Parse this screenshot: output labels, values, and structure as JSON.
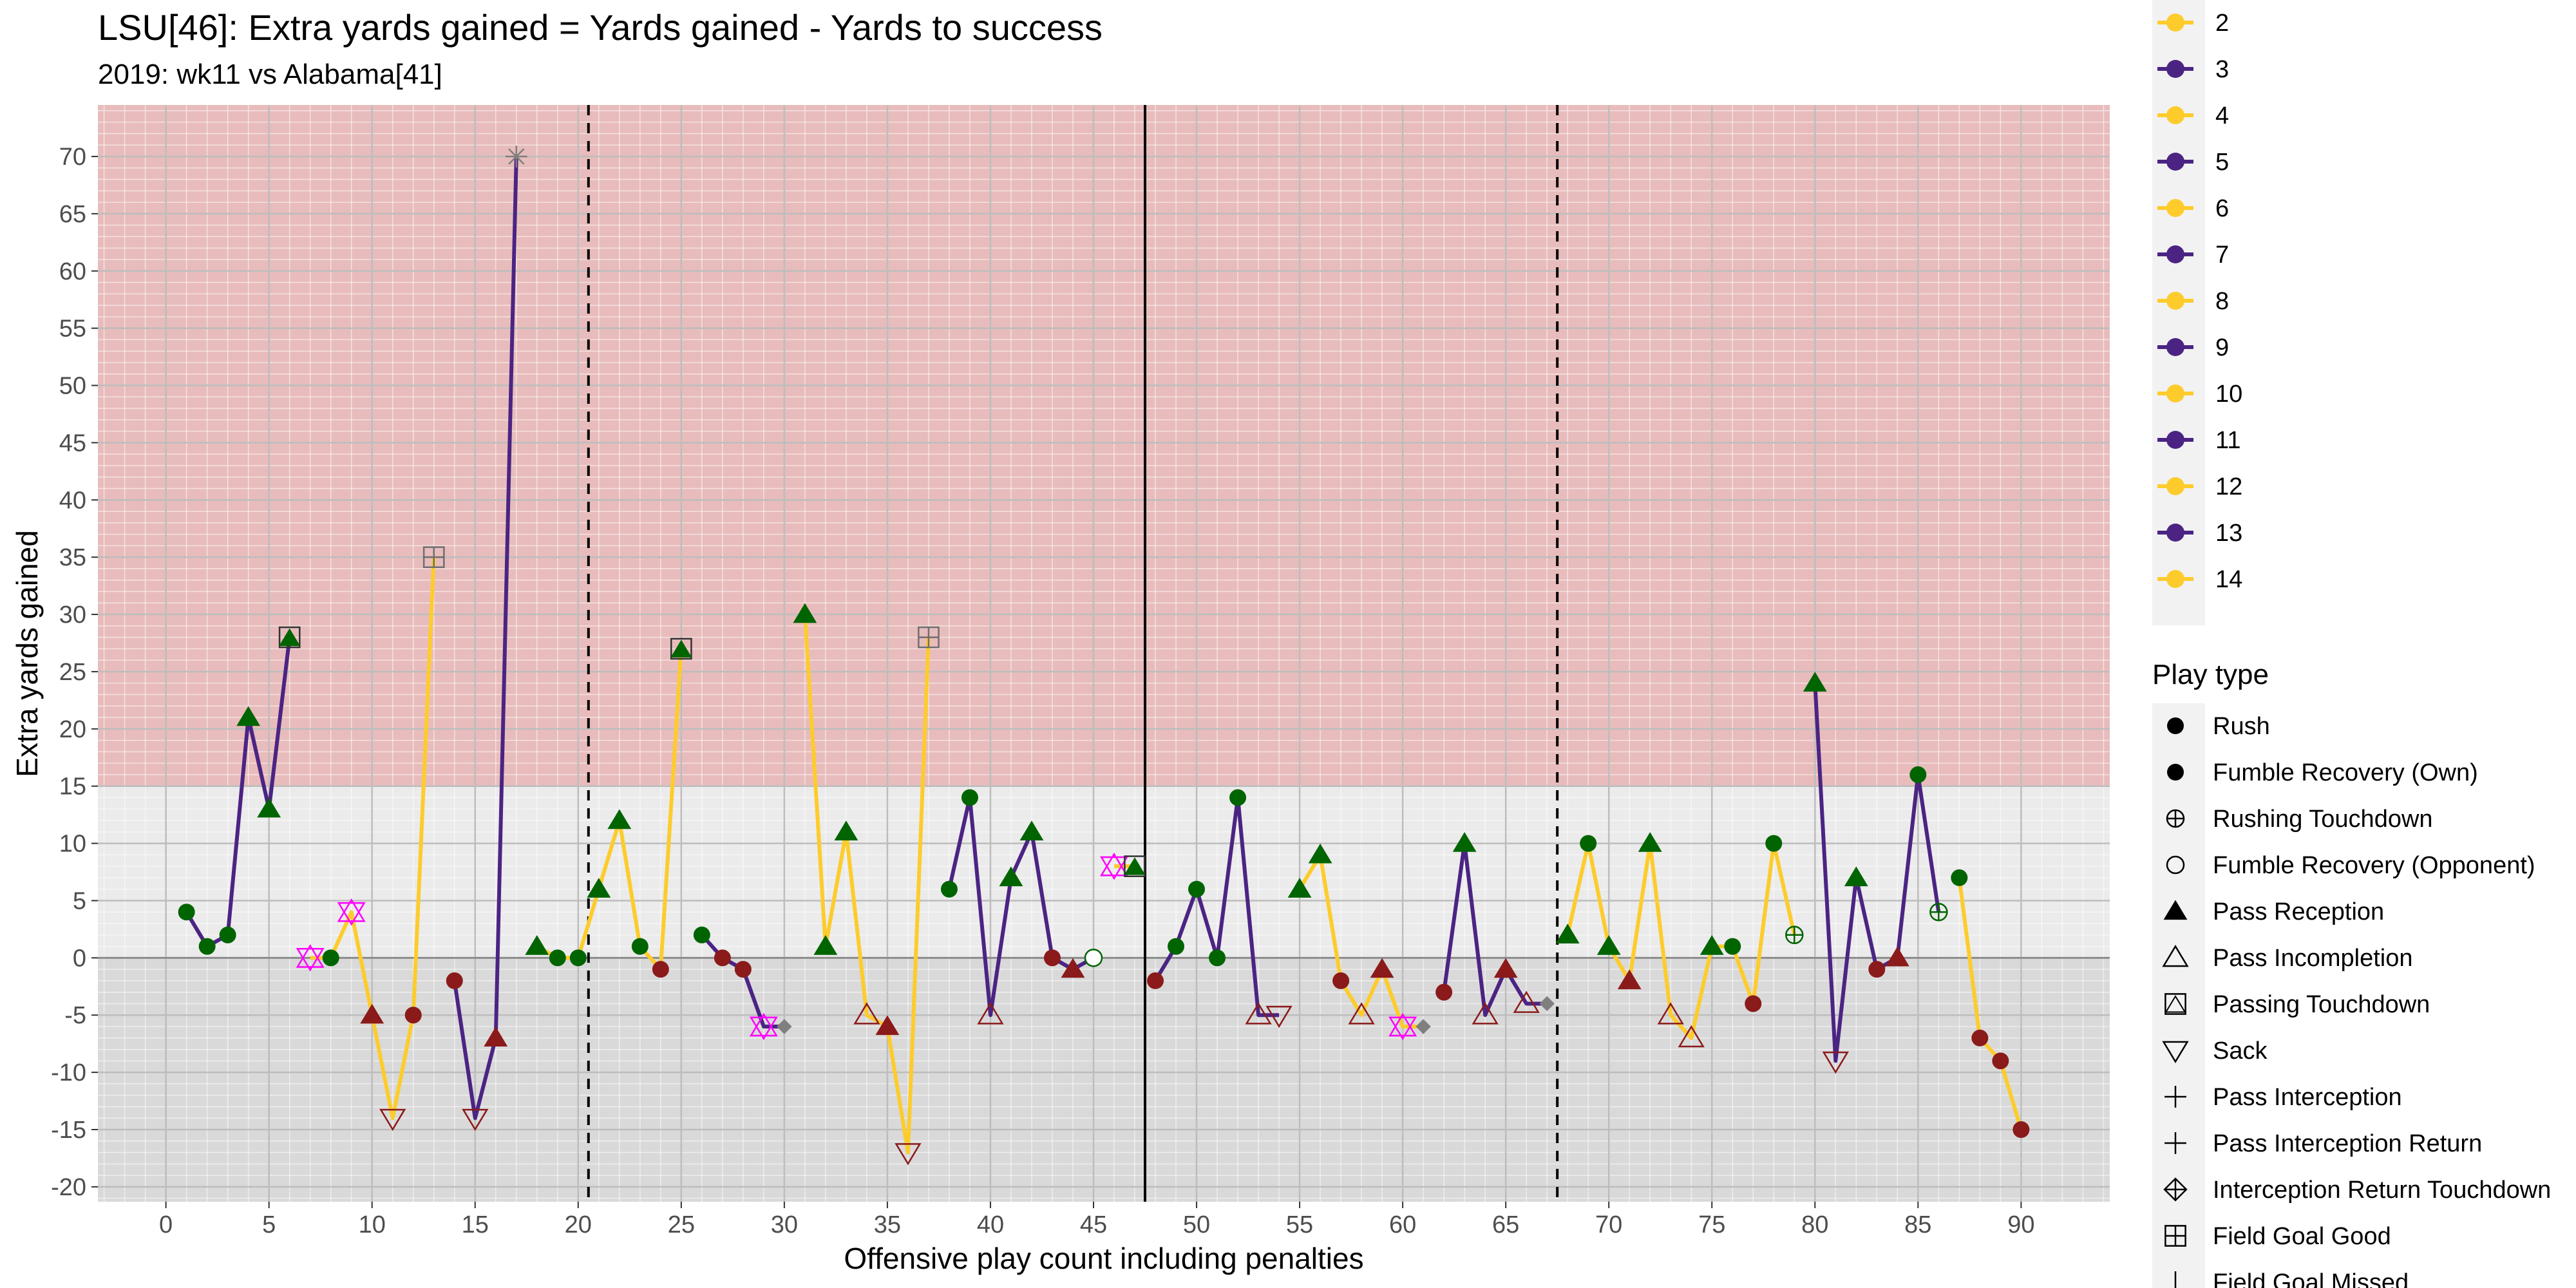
{
  "chart_data": {
    "type": "line",
    "title": "LSU[46]: Extra yards gained = Yards gained - Yards to success",
    "subtitle": "2019: wk11 vs Alabama[41]",
    "xlabel": "Offensive play count including penalties",
    "ylabel": "Extra yards gained",
    "xlim": [
      -3.3,
      94.3
    ],
    "ylim": [
      -21.3,
      74.5
    ],
    "x_ticks": [
      0,
      5,
      10,
      15,
      20,
      25,
      30,
      35,
      40,
      45,
      50,
      55,
      60,
      65,
      70,
      75,
      80,
      85,
      90
    ],
    "y_ticks": [
      -20,
      -15,
      -10,
      -5,
      0,
      5,
      10,
      15,
      20,
      25,
      30,
      35,
      40,
      45,
      50,
      55,
      60,
      65,
      70
    ],
    "success_threshold": 15,
    "zero_line": 0,
    "quarter_lines": [
      {
        "x": 20.5,
        "style": "dashed"
      },
      {
        "x": 47.5,
        "style": "solid"
      },
      {
        "x": 67.5,
        "style": "dashed"
      }
    ],
    "colors": {
      "success_zone": "#e8bcbc",
      "upper_panel": "#ebebeb",
      "lower_panel": "#d9d9d9",
      "drive_odd": "#4b2483",
      "drive_even": "#fdcc2c",
      "good_play": "#006400",
      "bad_play": "#8b1a1a",
      "penalty": "#ff00ff",
      "neutral": "#7f7f7f"
    },
    "drives": [
      {
        "drive": 1,
        "color": "drive_odd",
        "plays": [
          [
            1,
            4,
            "rush",
            "good"
          ],
          [
            2,
            1,
            "rush",
            "good"
          ],
          [
            3,
            2,
            "rush",
            "good"
          ],
          [
            4,
            21,
            "pass_reception",
            "good"
          ],
          [
            5,
            13,
            "pass_reception",
            "good"
          ],
          [
            6,
            28,
            "passing_touchdown",
            "good"
          ]
        ]
      },
      {
        "drive": 2,
        "color": "drive_even",
        "plays": [
          [
            7,
            0,
            "penalty",
            "penalty"
          ],
          [
            8,
            0,
            "rush",
            "good"
          ],
          [
            9,
            4,
            "penalty",
            "penalty"
          ],
          [
            10,
            -5,
            "pass_reception",
            "bad"
          ],
          [
            11,
            -14,
            "sack",
            "bad"
          ],
          [
            12,
            -5,
            "rush",
            "bad"
          ],
          [
            13,
            35,
            "field_goal_good",
            "neutral"
          ]
        ]
      },
      {
        "drive": 3,
        "color": "drive_odd",
        "plays": [
          [
            14,
            -2,
            "rush",
            "bad"
          ],
          [
            15,
            -14,
            "sack",
            "bad"
          ],
          [
            16,
            -7,
            "pass_reception",
            "bad"
          ],
          [
            17,
            70,
            "punt",
            "neutral"
          ]
        ]
      },
      {
        "drive": 4,
        "color": "drive_even",
        "plays": [
          [
            18,
            1,
            "pass_reception",
            "good"
          ],
          [
            19,
            0,
            "rush",
            "good"
          ],
          [
            20,
            0,
            "rush",
            "good"
          ],
          [
            21,
            6,
            "pass_reception",
            "good"
          ],
          [
            22,
            12,
            "pass_reception",
            "good"
          ],
          [
            23,
            1,
            "rush",
            "good"
          ],
          [
            24,
            -1,
            "rush",
            "bad"
          ],
          [
            25,
            27,
            "passing_touchdown",
            "good"
          ]
        ]
      },
      {
        "drive": 5,
        "color": "drive_odd",
        "plays": [
          [
            26,
            2,
            "rush",
            "good"
          ],
          [
            27,
            0,
            "rush",
            "bad"
          ],
          [
            28,
            -1,
            "rush",
            "bad"
          ],
          [
            29,
            -6,
            "penalty",
            "penalty"
          ],
          [
            30,
            -6,
            "kneel",
            "neutral"
          ]
        ]
      },
      {
        "drive": 6,
        "color": "drive_even",
        "plays": [
          [
            31,
            30,
            "pass_reception",
            "good"
          ],
          [
            32,
            1,
            "pass_reception",
            "good"
          ],
          [
            33,
            11,
            "pass_reception",
            "good"
          ],
          [
            34,
            -5,
            "pass_incompletion",
            "bad"
          ],
          [
            35,
            -6,
            "pass_reception",
            "bad"
          ],
          [
            36,
            -17,
            "sack",
            "bad"
          ],
          [
            37,
            28,
            "field_goal_good",
            "neutral"
          ]
        ]
      },
      {
        "drive": 7,
        "color": "drive_odd",
        "plays": [
          [
            38,
            6,
            "rush",
            "good"
          ],
          [
            39,
            14,
            "rush",
            "good"
          ],
          [
            40,
            -5,
            "pass_incompletion",
            "bad"
          ],
          [
            41,
            7,
            "pass_reception",
            "good"
          ],
          [
            42,
            11,
            "pass_reception",
            "good"
          ],
          [
            43,
            0,
            "rush",
            "bad"
          ],
          [
            44,
            -1,
            "pass_reception",
            "bad"
          ],
          [
            45,
            0,
            "fumble_recovery_opponent",
            "good"
          ]
        ]
      },
      {
        "drive": 8,
        "color": "drive_even",
        "plays": [
          [
            46,
            8,
            "penalty",
            "penalty"
          ],
          [
            47,
            8,
            "passing_touchdown",
            "good"
          ]
        ]
      },
      {
        "drive": 9,
        "color": "drive_odd",
        "plays": [
          [
            48,
            -2,
            "rush",
            "bad"
          ],
          [
            49,
            1,
            "rush",
            "good"
          ],
          [
            50,
            6,
            "rush",
            "good"
          ],
          [
            51,
            0,
            "rush",
            "good"
          ],
          [
            52,
            14,
            "rush",
            "good"
          ],
          [
            53,
            -5,
            "pass_incompletion",
            "bad"
          ],
          [
            54,
            -5,
            "sack",
            "bad"
          ]
        ]
      },
      {
        "drive": 10,
        "color": "drive_even",
        "plays": [
          [
            55,
            6,
            "pass_reception",
            "good"
          ],
          [
            56,
            9,
            "pass_reception",
            "good"
          ],
          [
            57,
            -2,
            "rush",
            "bad"
          ],
          [
            58,
            -5,
            "pass_incompletion",
            "bad"
          ],
          [
            59,
            -1,
            "pass_reception",
            "bad"
          ],
          [
            60,
            -6,
            "penalty",
            "penalty"
          ],
          [
            61,
            -6,
            "kneel",
            "neutral"
          ]
        ]
      },
      {
        "drive": 11,
        "color": "drive_odd",
        "plays": [
          [
            62,
            -3,
            "rush",
            "bad"
          ],
          [
            63,
            10,
            "pass_reception",
            "good"
          ],
          [
            64,
            -5,
            "pass_incompletion",
            "bad"
          ],
          [
            65,
            -1,
            "pass_reception",
            "bad"
          ],
          [
            66,
            -4,
            "pass_incompletion",
            "bad"
          ],
          [
            67,
            -4,
            "kneel",
            "neutral"
          ]
        ]
      },
      {
        "drive": 12,
        "color": "drive_even",
        "plays": [
          [
            68,
            2,
            "pass_reception",
            "good"
          ],
          [
            69,
            10,
            "rush",
            "good"
          ],
          [
            70,
            1,
            "pass_reception",
            "good"
          ],
          [
            71,
            -2,
            "pass_reception",
            "bad"
          ],
          [
            72,
            10,
            "pass_reception",
            "good"
          ],
          [
            73,
            -5,
            "pass_incompletion",
            "bad"
          ],
          [
            74,
            -7,
            "pass_incompletion",
            "bad"
          ],
          [
            75,
            1,
            "pass_reception",
            "good"
          ],
          [
            76,
            1,
            "rush",
            "good"
          ],
          [
            77,
            -4,
            "rush",
            "bad"
          ],
          [
            78,
            10,
            "rush",
            "good"
          ],
          [
            79,
            2,
            "rushing_touchdown",
            "good"
          ]
        ]
      },
      {
        "drive": 13,
        "color": "drive_odd",
        "plays": [
          [
            80,
            24,
            "pass_reception",
            "good"
          ],
          [
            81,
            -9,
            "sack",
            "bad"
          ],
          [
            82,
            7,
            "pass_reception",
            "good"
          ],
          [
            83,
            -1,
            "rush",
            "bad"
          ],
          [
            84,
            0,
            "pass_reception",
            "bad"
          ],
          [
            85,
            16,
            "rush",
            "good"
          ],
          [
            86,
            4,
            "rushing_touchdown",
            "good"
          ]
        ]
      },
      {
        "drive": 14,
        "color": "drive_even",
        "plays": [
          [
            87,
            7,
            "rush",
            "good"
          ],
          [
            88,
            -7,
            "rush",
            "bad"
          ],
          [
            89,
            -9,
            "rush",
            "bad"
          ],
          [
            90,
            -15,
            "rush",
            "bad"
          ]
        ]
      }
    ],
    "legend": {
      "drive_entries": [
        {
          "label": "2",
          "color": "drive_even"
        },
        {
          "label": "3",
          "color": "drive_odd"
        },
        {
          "label": "4",
          "color": "drive_even"
        },
        {
          "label": "5",
          "color": "drive_odd"
        },
        {
          "label": "6",
          "color": "drive_even"
        },
        {
          "label": "7",
          "color": "drive_odd"
        },
        {
          "label": "8",
          "color": "drive_even"
        },
        {
          "label": "9",
          "color": "drive_odd"
        },
        {
          "label": "10",
          "color": "drive_even"
        },
        {
          "label": "11",
          "color": "drive_odd"
        },
        {
          "label": "12",
          "color": "drive_even"
        },
        {
          "label": "13",
          "color": "drive_odd"
        },
        {
          "label": "14",
          "color": "drive_even"
        }
      ],
      "play_type_title": "Play type",
      "play_types": [
        {
          "label": "Rush",
          "shape": "rush"
        },
        {
          "label": "Fumble Recovery (Own)",
          "shape": "fumble_recovery_own"
        },
        {
          "label": "Rushing Touchdown",
          "shape": "rushing_touchdown"
        },
        {
          "label": "Fumble Recovery (Opponent)",
          "shape": "fumble_recovery_opponent"
        },
        {
          "label": "Pass Reception",
          "shape": "pass_reception"
        },
        {
          "label": "Pass Incompletion",
          "shape": "pass_incompletion"
        },
        {
          "label": "Passing Touchdown",
          "shape": "passing_touchdown"
        },
        {
          "label": "Sack",
          "shape": "sack"
        },
        {
          "label": "Pass Interception",
          "shape": "pass_interception"
        },
        {
          "label": "Pass Interception Return",
          "shape": "pass_interception_return"
        },
        {
          "label": "Interception Return Touchdown",
          "shape": "interception_return_touchdown"
        },
        {
          "label": "Field Goal Good",
          "shape": "field_goal_good"
        },
        {
          "label": "Field Goal Missed",
          "shape": "field_goal_missed"
        }
      ]
    }
  }
}
